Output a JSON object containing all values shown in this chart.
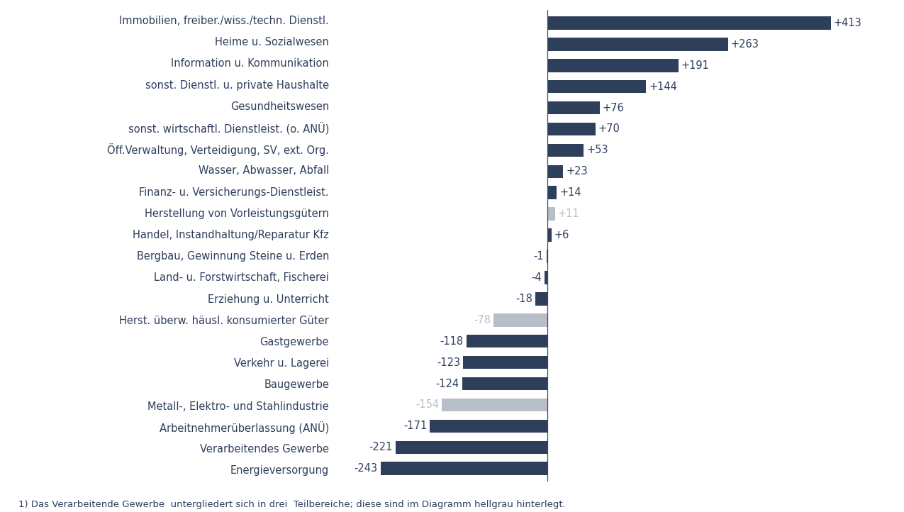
{
  "categories": [
    "Energieversorgung",
    "Verarbeitendes Gewerbe",
    "Arbeitnehmerüberlassung (ANÜ)",
    "Metall-, Elektro- und Stahlindustrie",
    "Baugewerbe",
    "Verkehr u. Lagerei",
    "Gastgewerbe",
    "Herst. überw. häusl. konsumierter Güter",
    "Erziehung u. Unterricht",
    "Land- u. Forstwirtschaft, Fischerei",
    "Bergbau, Gewinnung Steine u. Erden",
    "Handel, Instandhaltung/Reparatur Kfz",
    "Herstellung von Vorleistungsgütern",
    "Finanz- u. Versicherungs-Dienstleist.",
    "Wasser, Abwasser, Abfall",
    "Öff.Verwaltung, Verteidigung, SV, ext. Org.",
    "sonst. wirtschaftl. Dienstleist. (o. ANÜ)",
    "Gesundheitswesen",
    "sonst. Dienstl. u. private Haushalte",
    "Information u. Kommunikation",
    "Heime u. Sozialwesen",
    "Immobilien, freiber./wiss./techn. Dienstl."
  ],
  "values": [
    -243,
    -221,
    -171,
    -154,
    -124,
    -123,
    -118,
    -78,
    -18,
    -4,
    -1,
    6,
    11,
    14,
    23,
    53,
    70,
    76,
    144,
    191,
    263,
    413
  ],
  "colors": [
    "#2e3f5c",
    "#2e3f5c",
    "#2e3f5c",
    "#b8bec8",
    "#2e3f5c",
    "#2e3f5c",
    "#2e3f5c",
    "#b8bec8",
    "#2e3f5c",
    "#2e3f5c",
    "#2e3f5c",
    "#2e3f5c",
    "#b8bec8",
    "#2e3f5c",
    "#2e3f5c",
    "#2e3f5c",
    "#2e3f5c",
    "#2e3f5c",
    "#2e3f5c",
    "#2e3f5c",
    "#2e3f5c",
    "#2e3f5c"
  ],
  "label_color": "#2e3f5c",
  "footnote": "1) Das Verarbeitende Gewerbe  untergliedert sich in drei  Teilbereiche; diese sind im Diagramm hellgrau hinterlegt.",
  "background_color": "#ffffff",
  "bar_height": 0.62,
  "label_fontsize": 10.5,
  "value_fontsize": 10.5,
  "footnote_fontsize": 9.5,
  "xlim_left": -310,
  "xlim_right": 480
}
